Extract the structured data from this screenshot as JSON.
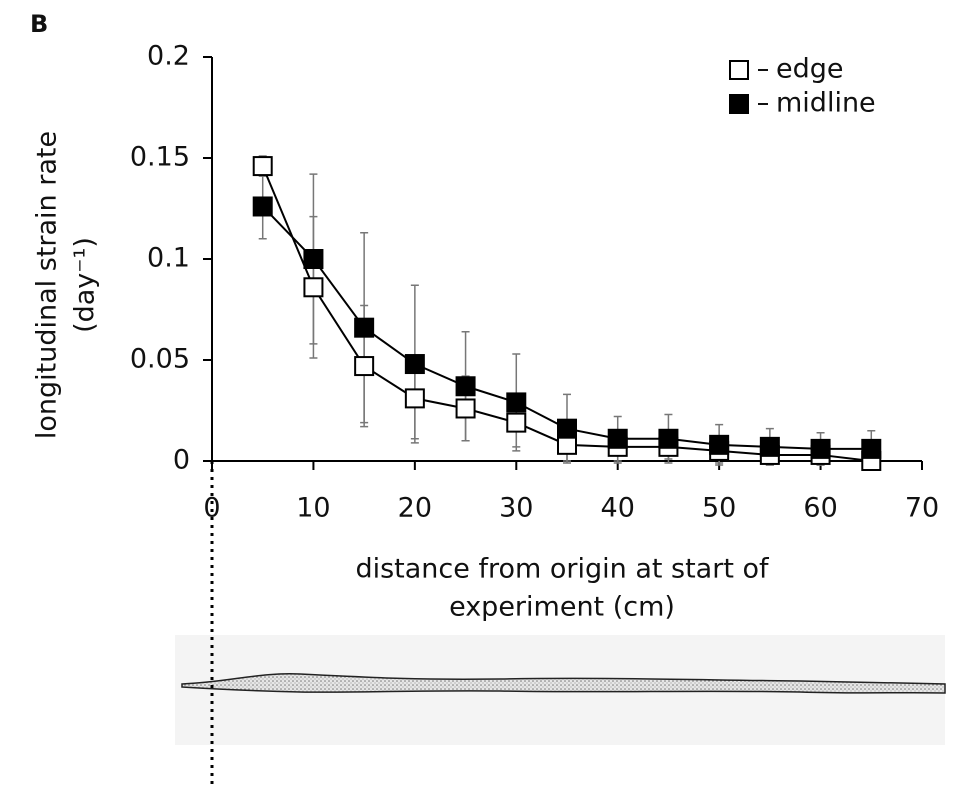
{
  "chart_data": {
    "type": "line",
    "panel_label": "B",
    "ylabel": "longitudinal strain rate",
    "ylabel_unit": "(day⁻¹)",
    "xlabel": [
      "distance from origin at start of",
      "experiment (cm)"
    ],
    "x": [
      5,
      10,
      15,
      20,
      25,
      30,
      35,
      40,
      45,
      50,
      55,
      60,
      65
    ],
    "series": [
      {
        "name": "edge",
        "color": "#ffffff",
        "values": [
          0.146,
          0.086,
          0.047,
          0.031,
          0.026,
          0.019,
          0.008,
          0.007,
          0.007,
          0.005,
          0.003,
          0.003,
          0.0
        ],
        "errors": [
          0.005,
          0.035,
          0.03,
          0.02,
          0.016,
          0.012,
          0.008,
          0.008,
          0.006,
          0.006,
          0.005,
          0.005,
          0.004
        ]
      },
      {
        "name": "midline",
        "color": "#000000",
        "values": [
          0.126,
          0.1,
          0.066,
          0.048,
          0.037,
          0.029,
          0.016,
          0.011,
          0.011,
          0.008,
          0.007,
          0.006,
          0.006
        ],
        "errors": [
          0.016,
          0.042,
          0.047,
          0.039,
          0.027,
          0.024,
          0.017,
          0.011,
          0.012,
          0.01,
          0.009,
          0.008,
          0.009
        ]
      }
    ],
    "xlim": [
      0,
      70
    ],
    "xticks": [
      0,
      10,
      20,
      30,
      40,
      50,
      60,
      70
    ],
    "ylim": [
      0,
      0.2
    ],
    "yticks": [
      0,
      0.05,
      0.1,
      0.15,
      0.2
    ],
    "grid": false,
    "legend": "upper right"
  }
}
